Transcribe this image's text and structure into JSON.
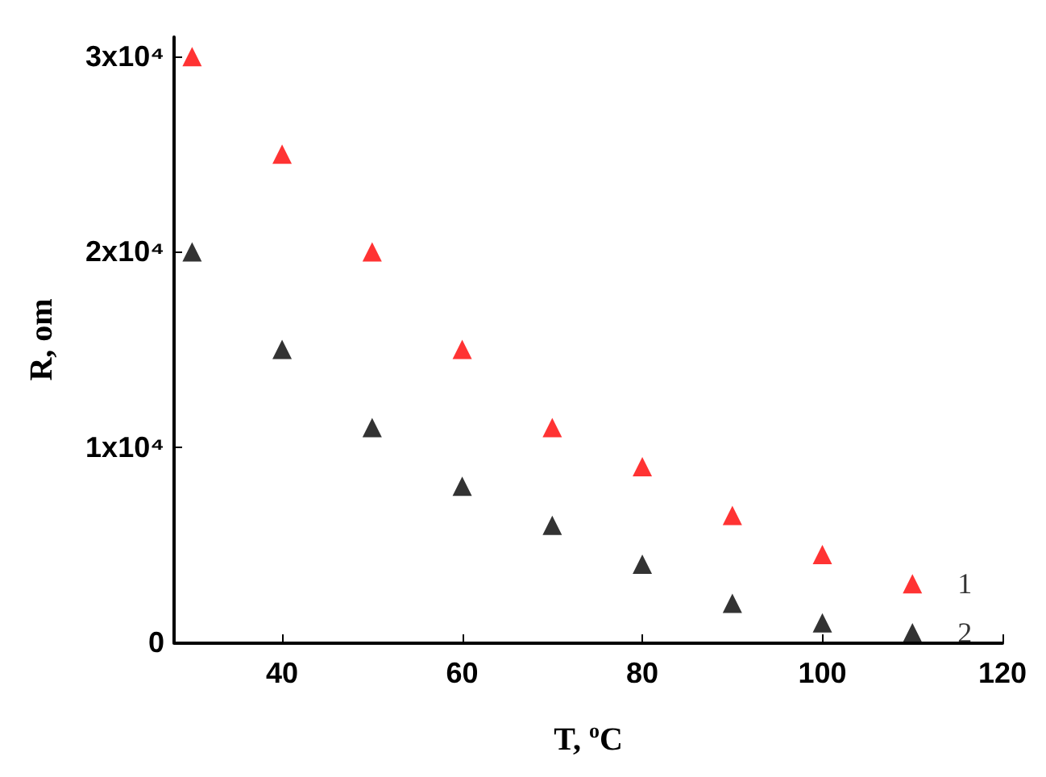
{
  "chart_data": {
    "type": "scatter",
    "xlabel": "T, $^{o}$C",
    "ylabel": "R, om",
    "x": [
      30,
      40,
      50,
      60,
      70,
      80,
      90,
      100,
      110
    ],
    "series": [
      {
        "name": "1",
        "color": "#ff0000",
        "values": [
          30000,
          25000,
          20000,
          15000,
          11000,
          9000,
          6500,
          4500,
          3000
        ]
      },
      {
        "name": "2",
        "color": "#000000",
        "values": [
          20000,
          15000,
          11000,
          8000,
          6000,
          4000,
          2000,
          1000,
          500
        ]
      }
    ],
    "xlim": [
      28,
      120
    ],
    "xticks": [
      40,
      60,
      80,
      100,
      120
    ],
    "ylim": [
      0,
      31000
    ],
    "yticks": [
      0,
      {
        "value": 10000,
        "label": "1x10⁴"
      },
      {
        "value": 20000,
        "label": "2x10⁴"
      },
      {
        "value": 30000,
        "label": "3x10⁴"
      }
    ],
    "marker": "triangle",
    "grid": false
  }
}
